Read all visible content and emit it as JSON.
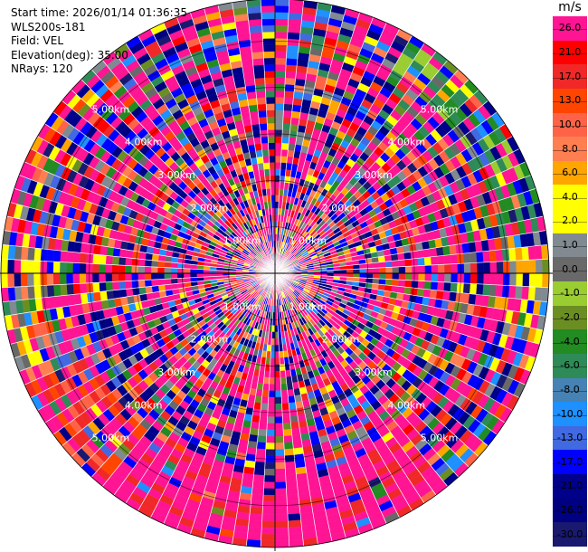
{
  "info": {
    "start_time": "Start time: 2026/01/14 01:36:35",
    "instrument": "WLS200s-181",
    "field": "Field: VEL",
    "elevation": "Elevation(deg): 35.00",
    "nrays": "NRays: 120"
  },
  "colorbar": {
    "unit": "m/s",
    "entries": [
      {
        "label": "26.0",
        "color": "#ff1493"
      },
      {
        "label": "21.0",
        "color": "#ff0000"
      },
      {
        "label": "17.0",
        "color": "#f02828"
      },
      {
        "label": "13.0",
        "color": "#ff4500"
      },
      {
        "label": "10.0",
        "color": "#ff6347"
      },
      {
        "label": "8.0",
        "color": "#ff7f50"
      },
      {
        "label": "6.0",
        "color": "#ffa500"
      },
      {
        "label": "4.0",
        "color": "#ffff00"
      },
      {
        "label": "2.0",
        "color": "#ffff00"
      },
      {
        "label": "1.0",
        "color": "#808a90"
      },
      {
        "label": "0.0",
        "color": "#696969"
      },
      {
        "label": "-1.0",
        "color": "#9acd32"
      },
      {
        "label": "-2.0",
        "color": "#6b8e23"
      },
      {
        "label": "-4.0",
        "color": "#228b22"
      },
      {
        "label": "-6.0",
        "color": "#2e8b57"
      },
      {
        "label": "-8.0",
        "color": "#4682b4"
      },
      {
        "label": "-10.0",
        "color": "#1e90ff"
      },
      {
        "label": "-13.0",
        "color": "#4169e1"
      },
      {
        "label": "-17.0",
        "color": "#0000ff"
      },
      {
        "label": "-21.0",
        "color": "#00008b"
      },
      {
        "label": "-26.0",
        "color": "#000080"
      },
      {
        "label": "-30.0",
        "color": "#191970"
      }
    ]
  },
  "ppi": {
    "nrays": 120,
    "ring_labels": [
      {
        "text": "1.00km",
        "range_km": 1.0
      },
      {
        "text": "2.00km",
        "range_km": 2.0
      },
      {
        "text": "3.00km",
        "range_km": 3.0
      },
      {
        "text": "4.00km",
        "range_km": 4.0
      },
      {
        "text": "5.00km",
        "range_km": 5.0
      }
    ],
    "max_range_km": 5.9
  }
}
